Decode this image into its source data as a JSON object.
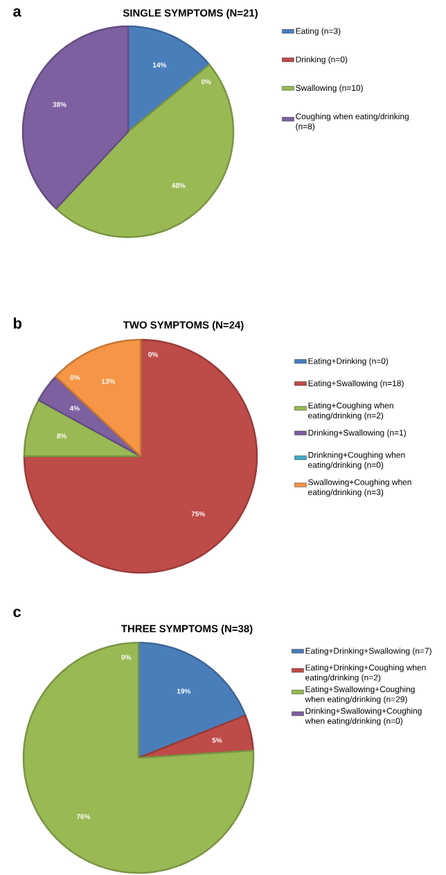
{
  "chart_data": [
    {
      "type": "pie",
      "title": "SINGLE SYMPTOMS (N=21)",
      "annotations": [
        "a"
      ],
      "categories": [
        "Eating (n=3)",
        "Drinking (n=0)",
        "Swallowing (n=10)",
        "Coughing when eating/drinking (n=8)"
      ],
      "values": [
        14,
        0,
        48,
        38
      ],
      "value_labels": [
        "14%",
        "0%",
        "48%",
        "38%"
      ],
      "colors": [
        "#4a7ebb",
        "#be4b48",
        "#98b954",
        "#7d60a0"
      ],
      "legend": "right"
    },
    {
      "type": "pie",
      "title": "TWO SYMPTOMS (N=24)",
      "annotations": [
        "b"
      ],
      "categories": [
        "Eating+Drinking (n=0)",
        "Eating+Swallowing (n=18)",
        "Eating+Coughing when eating/drinking (n=2)",
        "Drinking+Swallowing (n=1)",
        "Drinkning+Coughing when eating/drinking (n=0)",
        "Swallowing+Coughing when eating/drinking (n=3)"
      ],
      "values": [
        0,
        75,
        8,
        4,
        0,
        13
      ],
      "value_labels": [
        "0%",
        "75%",
        "8%",
        "4%",
        "0%",
        "13%"
      ],
      "colors": [
        "#4a7ebb",
        "#be4b48",
        "#98b954",
        "#7d60a0",
        "#46aac5",
        "#f69545"
      ],
      "legend": "right"
    },
    {
      "type": "pie",
      "title": "THREE SYMPTOMS (N=38)",
      "annotations": [
        "c"
      ],
      "categories": [
        "Eating+Drinking+Swallowing (n=7)",
        "Eating+Drinking+Coughing when eating/drinking (n=2)",
        "Eating+Swallowing+Coughing when eating/drinking (n=29)",
        "Drinking+Swallowing+Coughing when eating/drinking (n=0)"
      ],
      "values": [
        19,
        5,
        76,
        0
      ],
      "value_labels": [
        "19%",
        "5%",
        "76%",
        "0%"
      ],
      "colors": [
        "#4a7ebb",
        "#be4b48",
        "#98b954",
        "#7d60a0"
      ],
      "legend": "right"
    }
  ]
}
